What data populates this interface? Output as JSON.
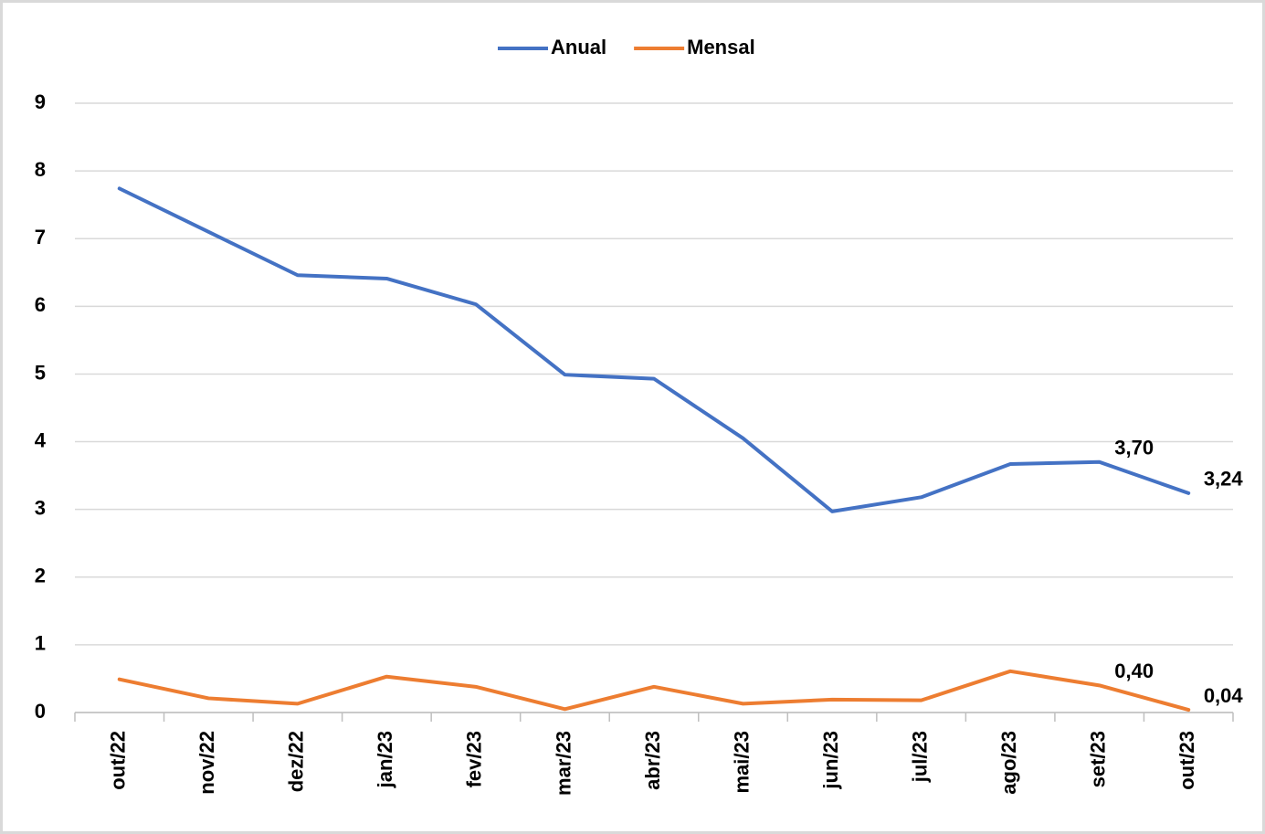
{
  "chart_data": {
    "type": "line",
    "categories": [
      "out/22",
      "nov/22",
      "dez/22",
      "jan/23",
      "fev/23",
      "mar/23",
      "abr/23",
      "mai/23",
      "jun/23",
      "jul/23",
      "ago/23",
      "set/23",
      "out/23"
    ],
    "series": [
      {
        "name": "Anual",
        "color": "#4472c4",
        "values": [
          7.74,
          7.1,
          6.46,
          6.41,
          6.03,
          4.99,
          4.93,
          4.05,
          2.97,
          3.18,
          3.67,
          3.7,
          3.24
        ],
        "value_labels": [
          null,
          null,
          null,
          null,
          null,
          null,
          null,
          null,
          null,
          null,
          null,
          "3,70",
          "3,24"
        ]
      },
      {
        "name": "Mensal",
        "color": "#ed7d31",
        "values": [
          0.49,
          0.21,
          0.13,
          0.53,
          0.38,
          0.05,
          0.38,
          0.13,
          0.19,
          0.18,
          0.61,
          0.4,
          0.04
        ],
        "value_labels": [
          null,
          null,
          null,
          null,
          null,
          null,
          null,
          null,
          null,
          null,
          null,
          "0,40",
          "0,04"
        ]
      }
    ],
    "ylim": [
      0,
      9
    ],
    "yticks": [
      0,
      1,
      2,
      3,
      4,
      5,
      6,
      7,
      8,
      9
    ],
    "grid": true,
    "legend": "top"
  }
}
